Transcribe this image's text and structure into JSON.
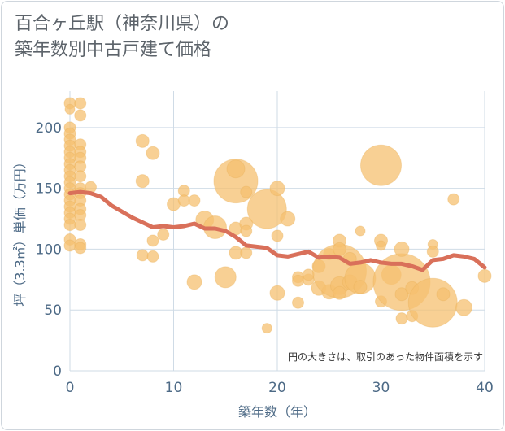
{
  "title_line1": "百合ヶ丘駅（神奈川県）の",
  "title_line2": "築年数別中古戸建て価格",
  "colors": {
    "bubble": "#f5c070",
    "bubble_stroke": "#e9ae55",
    "line": "#d9705a",
    "grid": "#cfdbe6",
    "axis_text": "#4d6a86",
    "title": "#5c636a"
  },
  "chart_data": {
    "type": "scatter",
    "title": "百合ヶ丘駅（神奈川県）の築年数別中古戸建て価格",
    "xlabel": "築年数（年）",
    "ylabel": "坪（3.3㎡）単価（万円）",
    "xlim": [
      0,
      40
    ],
    "ylim": [
      0,
      230
    ],
    "xticks": [
      0,
      10,
      20,
      30,
      40
    ],
    "yticks": [
      0,
      50,
      100,
      150,
      200
    ],
    "grid": true,
    "note": "円の大きさは、取引のあった物件面積を示す",
    "bubbles": [
      {
        "x": 0,
        "y": 220,
        "r": 7
      },
      {
        "x": 0,
        "y": 215,
        "r": 6
      },
      {
        "x": 0,
        "y": 200,
        "r": 7
      },
      {
        "x": 0,
        "y": 195,
        "r": 7
      },
      {
        "x": 0,
        "y": 190,
        "r": 7
      },
      {
        "x": 0,
        "y": 185,
        "r": 7
      },
      {
        "x": 0,
        "y": 180,
        "r": 7
      },
      {
        "x": 0,
        "y": 175,
        "r": 7
      },
      {
        "x": 0,
        "y": 170,
        "r": 7
      },
      {
        "x": 0,
        "y": 165,
        "r": 7
      },
      {
        "x": 0,
        "y": 160,
        "r": 7
      },
      {
        "x": 0,
        "y": 155,
        "r": 7
      },
      {
        "x": 0,
        "y": 150,
        "r": 7
      },
      {
        "x": 0,
        "y": 145,
        "r": 7
      },
      {
        "x": 0,
        "y": 140,
        "r": 7
      },
      {
        "x": 0,
        "y": 135,
        "r": 7
      },
      {
        "x": 0,
        "y": 130,
        "r": 7
      },
      {
        "x": 0,
        "y": 125,
        "r": 7
      },
      {
        "x": 0,
        "y": 120,
        "r": 7
      },
      {
        "x": 0,
        "y": 108,
        "r": 7
      },
      {
        "x": 0,
        "y": 103,
        "r": 7
      },
      {
        "x": 1,
        "y": 220,
        "r": 7
      },
      {
        "x": 1,
        "y": 210,
        "r": 7
      },
      {
        "x": 1,
        "y": 186,
        "r": 7
      },
      {
        "x": 1,
        "y": 180,
        "r": 7
      },
      {
        "x": 1,
        "y": 175,
        "r": 7
      },
      {
        "x": 1,
        "y": 168,
        "r": 7
      },
      {
        "x": 1,
        "y": 160,
        "r": 7
      },
      {
        "x": 1,
        "y": 150,
        "r": 7
      },
      {
        "x": 1,
        "y": 146,
        "r": 7
      },
      {
        "x": 1,
        "y": 140,
        "r": 7
      },
      {
        "x": 1,
        "y": 133,
        "r": 7
      },
      {
        "x": 1,
        "y": 128,
        "r": 7
      },
      {
        "x": 1,
        "y": 120,
        "r": 7
      },
      {
        "x": 1,
        "y": 104,
        "r": 7
      },
      {
        "x": 1,
        "y": 101,
        "r": 7
      },
      {
        "x": 2,
        "y": 151,
        "r": 7
      },
      {
        "x": 7,
        "y": 189,
        "r": 8
      },
      {
        "x": 7,
        "y": 156,
        "r": 8
      },
      {
        "x": 7,
        "y": 95,
        "r": 7
      },
      {
        "x": 8,
        "y": 179,
        "r": 8
      },
      {
        "x": 8,
        "y": 107,
        "r": 7
      },
      {
        "x": 8,
        "y": 94,
        "r": 7
      },
      {
        "x": 9,
        "y": 112,
        "r": 7
      },
      {
        "x": 10,
        "y": 137,
        "r": 8
      },
      {
        "x": 11,
        "y": 148,
        "r": 7
      },
      {
        "x": 11,
        "y": 140,
        "r": 7
      },
      {
        "x": 12,
        "y": 140,
        "r": 7
      },
      {
        "x": 12,
        "y": 73,
        "r": 9
      },
      {
        "x": 13,
        "y": 124,
        "r": 11
      },
      {
        "x": 14,
        "y": 118,
        "r": 14
      },
      {
        "x": 15,
        "y": 77,
        "r": 13
      },
      {
        "x": 16,
        "y": 156,
        "r": 27
      },
      {
        "x": 16,
        "y": 166,
        "r": 11
      },
      {
        "x": 16,
        "y": 117,
        "r": 8
      },
      {
        "x": 16,
        "y": 97,
        "r": 8
      },
      {
        "x": 17,
        "y": 147,
        "r": 7
      },
      {
        "x": 17,
        "y": 121,
        "r": 8
      },
      {
        "x": 17,
        "y": 115,
        "r": 7
      },
      {
        "x": 17,
        "y": 97,
        "r": 7
      },
      {
        "x": 19,
        "y": 133,
        "r": 24
      },
      {
        "x": 19,
        "y": 35,
        "r": 6
      },
      {
        "x": 20,
        "y": 150,
        "r": 9
      },
      {
        "x": 20,
        "y": 111,
        "r": 7
      },
      {
        "x": 20,
        "y": 64,
        "r": 9
      },
      {
        "x": 21,
        "y": 125,
        "r": 9
      },
      {
        "x": 22,
        "y": 77,
        "r": 7
      },
      {
        "x": 22,
        "y": 74,
        "r": 7
      },
      {
        "x": 22,
        "y": 56,
        "r": 7
      },
      {
        "x": 23,
        "y": 75,
        "r": 7
      },
      {
        "x": 23,
        "y": 79,
        "r": 7
      },
      {
        "x": 24,
        "y": 86,
        "r": 8
      },
      {
        "x": 24,
        "y": 68,
        "r": 9
      },
      {
        "x": 25,
        "y": 96,
        "r": 7
      },
      {
        "x": 25,
        "y": 65,
        "r": 9
      },
      {
        "x": 26,
        "y": 82,
        "r": 33
      },
      {
        "x": 26,
        "y": 107,
        "r": 8
      },
      {
        "x": 26,
        "y": 100,
        "r": 8
      },
      {
        "x": 26,
        "y": 70,
        "r": 11
      },
      {
        "x": 26,
        "y": 64,
        "r": 8
      },
      {
        "x": 27,
        "y": 92,
        "r": 8
      },
      {
        "x": 27,
        "y": 73,
        "r": 9
      },
      {
        "x": 28,
        "y": 76,
        "r": 19
      },
      {
        "x": 28,
        "y": 115,
        "r": 6
      },
      {
        "x": 28,
        "y": 69,
        "r": 8
      },
      {
        "x": 30,
        "y": 169,
        "r": 25
      },
      {
        "x": 30,
        "y": 107,
        "r": 8
      },
      {
        "x": 30,
        "y": 103,
        "r": 6
      },
      {
        "x": 30,
        "y": 57,
        "r": 7
      },
      {
        "x": 31,
        "y": 79,
        "r": 12
      },
      {
        "x": 32,
        "y": 73,
        "r": 35
      },
      {
        "x": 32,
        "y": 100,
        "r": 9
      },
      {
        "x": 32,
        "y": 63,
        "r": 8
      },
      {
        "x": 32,
        "y": 43,
        "r": 7
      },
      {
        "x": 33,
        "y": 68,
        "r": 8
      },
      {
        "x": 33,
        "y": 45,
        "r": 7
      },
      {
        "x": 35,
        "y": 56,
        "r": 30
      },
      {
        "x": 35,
        "y": 104,
        "r": 6
      },
      {
        "x": 35,
        "y": 98,
        "r": 7
      },
      {
        "x": 36,
        "y": 63,
        "r": 8
      },
      {
        "x": 37,
        "y": 141,
        "r": 7
      },
      {
        "x": 38,
        "y": 52,
        "r": 10
      },
      {
        "x": 40,
        "y": 78,
        "r": 8
      }
    ],
    "trend": {
      "x": [
        0,
        1,
        2,
        3,
        4,
        5,
        6,
        7,
        8,
        9,
        10,
        11,
        12,
        13,
        14,
        15,
        16,
        17,
        18,
        19,
        20,
        21,
        22,
        23,
        24,
        25,
        26,
        27,
        28,
        29,
        30,
        31,
        32,
        33,
        34,
        35,
        36,
        37,
        38,
        39,
        40
      ],
      "y": [
        146,
        147,
        146,
        143,
        136,
        131,
        126,
        122,
        118,
        119,
        118,
        119,
        121,
        117,
        117,
        115,
        110,
        103,
        102,
        101,
        95,
        94,
        96,
        98,
        93,
        94,
        93,
        88,
        89,
        91,
        89,
        88,
        88,
        86,
        83,
        91,
        92,
        95,
        94,
        92,
        85
      ]
    }
  }
}
